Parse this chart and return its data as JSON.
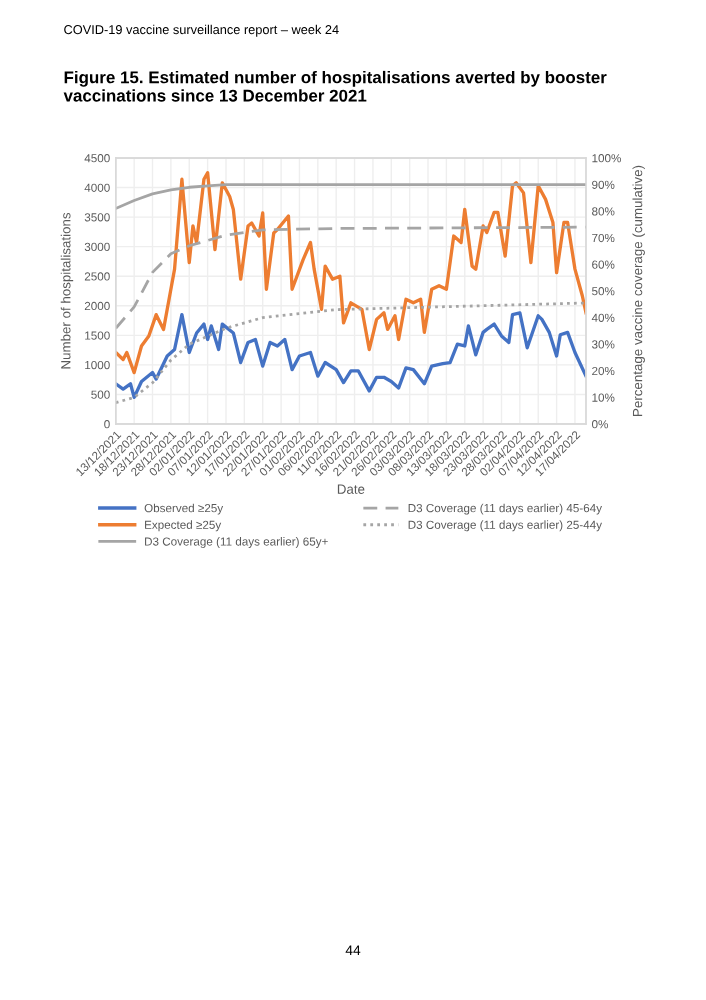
{
  "chart_data": {
    "type": "line",
    "title": "Figure 15. Estimated number of hospitalisations averted by booster vaccinations since 13 December 2021",
    "xlabel": "Date",
    "ylabel": "Number of hospitalisations",
    "y2label": "Percentage vaccine coverage (cumulative)",
    "annotations": [
      "COVID-19 vaccine surveillance report – week 24",
      "44"
    ],
    "xlim": [
      "2021-12-13",
      "2022-04-20"
    ],
    "xticks": [
      {
        "value": "2021-12-13",
        "label": "13/12/2021"
      },
      {
        "value": "2021-12-18",
        "label": "18/12/2021"
      },
      {
        "value": "2021-12-23",
        "label": "23/12/2021"
      },
      {
        "value": "2021-12-28",
        "label": "28/12/2021"
      },
      {
        "value": "2022-01-02",
        "label": "02/01/2022"
      },
      {
        "value": "2022-01-07",
        "label": "07/01/2022"
      },
      {
        "value": "2022-01-12",
        "label": "12/01/2022"
      },
      {
        "value": "2022-01-17",
        "label": "17/01/2022"
      },
      {
        "value": "2022-01-22",
        "label": "22/01/2022"
      },
      {
        "value": "2022-01-27",
        "label": "27/01/2022"
      },
      {
        "value": "2022-02-01",
        "label": "01/02/2022"
      },
      {
        "value": "2022-02-06",
        "label": "06/02/2022"
      },
      {
        "value": "2022-02-11",
        "label": "11/02/2022"
      },
      {
        "value": "2022-02-16",
        "label": "16/02/2022"
      },
      {
        "value": "2022-02-21",
        "label": "21/02/2022"
      },
      {
        "value": "2022-02-26",
        "label": "26/02/2022"
      },
      {
        "value": "2022-03-03",
        "label": "03/03/2022"
      },
      {
        "value": "2022-03-08",
        "label": "08/03/2022"
      },
      {
        "value": "2022-03-13",
        "label": "13/03/2022"
      },
      {
        "value": "2022-03-18",
        "label": "18/03/2022"
      },
      {
        "value": "2022-03-23",
        "label": "23/03/2022"
      },
      {
        "value": "2022-03-28",
        "label": "28/03/2022"
      },
      {
        "value": "2022-04-02",
        "label": "02/04/2022"
      },
      {
        "value": "2022-04-07",
        "label": "07/04/2022"
      },
      {
        "value": "2022-04-12",
        "label": "12/04/2022"
      },
      {
        "value": "2022-04-17",
        "label": "17/04/2022"
      }
    ],
    "ylim": [
      0,
      4500
    ],
    "yticks": [
      0,
      500,
      1000,
      1500,
      2000,
      2500,
      3000,
      3500,
      4000,
      4500
    ],
    "y2lim": [
      0,
      100
    ],
    "y2ticks": [
      {
        "value": 0,
        "label": "0%"
      },
      {
        "value": 10,
        "label": "10%"
      },
      {
        "value": 20,
        "label": "20%"
      },
      {
        "value": 30,
        "label": "30%"
      },
      {
        "value": 40,
        "label": "40%"
      },
      {
        "value": 50,
        "label": "50%"
      },
      {
        "value": 60,
        "label": "60%"
      },
      {
        "value": 70,
        "label": "70%"
      },
      {
        "value": 80,
        "label": "80%"
      },
      {
        "value": 90,
        "label": "90%"
      },
      {
        "value": 100,
        "label": "100%"
      }
    ],
    "grid": true,
    "legend": "bottom",
    "series": [
      {
        "name": "Observed ≥25y",
        "color": "#4472c4",
        "line_style": "solid",
        "x": [
          "2021-12-13",
          "2021-12-15",
          "2021-12-17",
          "2021-12-18",
          "2021-12-20",
          "2021-12-23",
          "2021-12-24",
          "2021-12-27",
          "2021-12-29",
          "2021-12-31",
          "2022-01-02",
          "2022-01-04",
          "2022-01-06",
          "2022-01-07",
          "2022-01-08",
          "2022-01-10",
          "2022-01-11",
          "2022-01-14",
          "2022-01-16",
          "2022-01-18",
          "2022-01-20",
          "2022-01-22",
          "2022-01-24",
          "2022-01-26",
          "2022-01-28",
          "2022-01-30",
          "2022-02-01",
          "2022-02-04",
          "2022-02-06",
          "2022-02-08",
          "2022-02-11",
          "2022-02-13",
          "2022-02-15",
          "2022-02-17",
          "2022-02-20",
          "2022-02-22",
          "2022-02-24",
          "2022-02-26",
          "2022-02-28",
          "2022-03-02",
          "2022-03-04",
          "2022-03-07",
          "2022-03-09",
          "2022-03-12",
          "2022-03-14",
          "2022-03-16",
          "2022-03-18",
          "2022-03-19",
          "2022-03-21",
          "2022-03-23",
          "2022-03-24",
          "2022-03-26",
          "2022-03-28",
          "2022-03-30",
          "2022-03-31",
          "2022-04-02",
          "2022-04-04",
          "2022-04-07",
          "2022-04-08",
          "2022-04-10",
          "2022-04-12",
          "2022-04-13",
          "2022-04-15",
          "2022-04-17",
          "2022-04-20"
        ],
        "values": [
          680,
          590,
          680,
          450,
          720,
          870,
          760,
          1150,
          1260,
          1850,
          1210,
          1540,
          1690,
          1430,
          1660,
          1260,
          1690,
          1540,
          1040,
          1380,
          1430,
          980,
          1380,
          1320,
          1430,
          920,
          1150,
          1210,
          810,
          1040,
          920,
          700,
          900,
          900,
          560,
          790,
          790,
          720,
          610,
          950,
          920,
          680,
          980,
          1020,
          1040,
          1350,
          1320,
          1660,
          1170,
          1550,
          1600,
          1690,
          1490,
          1380,
          1850,
          1880,
          1290,
          1830,
          1770,
          1550,
          1150,
          1510,
          1550,
          1210,
          810
        ]
      },
      {
        "name": "Expected ≥25y",
        "color": "#ed7d31",
        "line_style": "solid",
        "x": [
          "2021-12-13",
          "2021-12-15",
          "2021-12-16",
          "2021-12-18",
          "2021-12-20",
          "2021-12-22",
          "2021-12-24",
          "2021-12-26",
          "2021-12-28",
          "2021-12-29",
          "2021-12-31",
          "2022-01-02",
          "2022-01-03",
          "2022-01-04",
          "2022-01-06",
          "2022-01-07",
          "2022-01-09",
          "2022-01-11",
          "2022-01-13",
          "2022-01-14",
          "2022-01-16",
          "2022-01-18",
          "2022-01-19",
          "2022-01-21",
          "2022-01-22",
          "2022-01-23",
          "2022-01-25",
          "2022-01-26",
          "2022-01-29",
          "2022-01-30",
          "2022-02-02",
          "2022-02-04",
          "2022-02-05",
          "2022-02-07",
          "2022-02-08",
          "2022-02-10",
          "2022-02-12",
          "2022-02-13",
          "2022-02-15",
          "2022-02-18",
          "2022-02-20",
          "2022-02-22",
          "2022-02-24",
          "2022-02-25",
          "2022-02-27",
          "2022-02-28",
          "2022-03-02",
          "2022-03-04",
          "2022-03-06",
          "2022-03-07",
          "2022-03-09",
          "2022-03-11",
          "2022-03-13",
          "2022-03-15",
          "2022-03-17",
          "2022-03-18",
          "2022-03-20",
          "2022-03-21",
          "2022-03-23",
          "2022-03-24",
          "2022-03-26",
          "2022-03-27",
          "2022-03-29",
          "2022-03-31",
          "2022-04-01",
          "2022-04-03",
          "2022-04-05",
          "2022-04-07",
          "2022-04-09",
          "2022-04-11",
          "2022-04-12",
          "2022-04-14",
          "2022-04-15",
          "2022-04-17",
          "2022-04-19",
          "2022-04-20"
        ],
        "values": [
          1210,
          1090,
          1210,
          870,
          1320,
          1490,
          1850,
          1600,
          2280,
          2620,
          4140,
          2730,
          3350,
          3070,
          4140,
          4250,
          2950,
          4080,
          3850,
          3630,
          2450,
          3350,
          3400,
          3180,
          3570,
          2280,
          3230,
          3290,
          3520,
          2280,
          2780,
          3070,
          2620,
          1940,
          2670,
          2450,
          2500,
          1710,
          2050,
          1940,
          1260,
          1770,
          1880,
          1600,
          1830,
          1430,
          2110,
          2050,
          2110,
          1550,
          2280,
          2340,
          2280,
          3180,
          3070,
          3630,
          2670,
          2620,
          3350,
          3240,
          3580,
          3580,
          2840,
          4030,
          4080,
          3910,
          2730,
          4030,
          3800,
          3410,
          2560,
          3410,
          3410,
          2620,
          2170,
          1880
        ]
      },
      {
        "name": "D3 Coverage (11 days earlier) 65y+",
        "color": "#a5a5a5",
        "axis": "y2",
        "line_style": "solid",
        "x": [
          "2021-12-13",
          "2021-12-18",
          "2021-12-23",
          "2021-12-28",
          "2022-01-02",
          "2022-01-07",
          "2022-01-12",
          "2022-01-22",
          "2022-02-11",
          "2022-04-20"
        ],
        "values": [
          81,
          84,
          86.5,
          88,
          89,
          89.5,
          90,
          90,
          90,
          90
        ]
      },
      {
        "name": "D3 Coverage (11 days earlier) 45-64y",
        "color": "#a5a5a5",
        "axis": "y2",
        "line_style": "dashed",
        "x": [
          "2021-12-13",
          "2021-12-18",
          "2021-12-23",
          "2021-12-28",
          "2022-01-02",
          "2022-01-07",
          "2022-01-12",
          "2022-01-22",
          "2022-02-11",
          "2022-04-20"
        ],
        "values": [
          36,
          44,
          57,
          64,
          67,
          69,
          71,
          73,
          73.5,
          74
        ]
      },
      {
        "name": "D3 Coverage (11 days earlier) 25-44y",
        "color": "#a5a5a5",
        "axis": "y2",
        "line_style": "dotted",
        "x": [
          "2021-12-13",
          "2021-12-18",
          "2021-12-23",
          "2021-12-28",
          "2022-01-02",
          "2022-01-07",
          "2022-01-12",
          "2022-01-22",
          "2022-02-11",
          "2022-04-20"
        ],
        "values": [
          8,
          10,
          15.5,
          24,
          30,
          33,
          36,
          40,
          43,
          45.5
        ]
      }
    ]
  }
}
